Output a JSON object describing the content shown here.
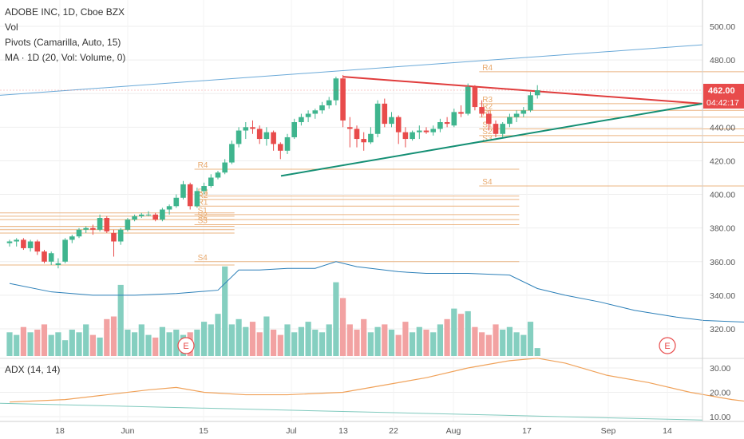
{
  "legend": {
    "title": "ADOBE INC, 1D, Cboe BZX",
    "vol": "Vol",
    "pivots": "Pivots (Camarilla, Auto, 15)",
    "ma": "MA · 1D (20, Vol: Volume, 0)"
  },
  "adx_label": "ADX (14, 14)",
  "colors": {
    "up": "#3fb58e",
    "down": "#e84b4b",
    "up_vol": "#85cfc0",
    "down_vol": "#f2a2a2",
    "pivot": "#e8a86c",
    "channel": "#6aa9d8",
    "trend_red": "#e03c3c",
    "trend_green": "#148f74",
    "ma_line": "#2b7fb8",
    "adx_line": "#f0a25a",
    "price_badge": "#e84b4b",
    "grid": "#eeeeee"
  },
  "chart_data": {
    "type": "candlestick",
    "y_axis": {
      "min": 300,
      "max": 505,
      "ticks": [
        "500.00",
        "480.00",
        "460.00",
        "440.00",
        "420.00",
        "400.00",
        "380.00",
        "360.00",
        "340.00",
        "320.00"
      ]
    },
    "adx_axis": {
      "min": 8,
      "max": 35,
      "ticks": [
        "30.00",
        "20.00",
        "10.00"
      ]
    },
    "x_ticks": [
      "18",
      "Jun",
      "15",
      "Jul",
      "13",
      "22",
      "Aug",
      "17",
      "Sep",
      "14"
    ],
    "current_price": "462.00",
    "countdown": "04:42:17",
    "candles": [
      [
        371,
        373,
        369,
        372
      ],
      [
        372,
        374,
        369,
        373
      ],
      [
        373,
        374,
        367,
        368
      ],
      [
        368,
        373,
        366,
        372
      ],
      [
        372,
        373,
        364,
        366
      ],
      [
        366,
        367,
        359,
        360
      ],
      [
        360,
        366,
        358,
        365
      ],
      [
        358,
        362,
        356,
        359
      ],
      [
        360,
        374,
        359,
        373
      ],
      [
        373,
        376,
        371,
        375
      ],
      [
        375,
        380,
        374,
        379
      ],
      [
        379,
        381,
        377,
        380
      ],
      [
        380,
        382,
        376,
        379
      ],
      [
        379,
        388,
        378,
        386
      ],
      [
        386,
        387,
        377,
        378
      ],
      [
        377,
        379,
        363,
        372
      ],
      [
        372,
        380,
        370,
        379
      ],
      [
        379,
        386,
        378,
        385
      ],
      [
        385,
        388,
        384,
        387
      ],
      [
        387,
        389,
        386,
        388
      ],
      [
        388,
        390,
        387,
        388
      ],
      [
        388,
        389,
        384,
        385
      ],
      [
        385,
        392,
        384,
        391
      ],
      [
        391,
        394,
        388,
        393
      ],
      [
        393,
        400,
        392,
        398
      ],
      [
        398,
        408,
        397,
        406
      ],
      [
        406,
        407,
        391,
        393
      ],
      [
        393,
        404,
        392,
        402
      ],
      [
        402,
        407,
        400,
        405
      ],
      [
        405,
        412,
        404,
        410
      ],
      [
        410,
        414,
        409,
        413
      ],
      [
        413,
        421,
        412,
        419
      ],
      [
        419,
        432,
        418,
        430
      ],
      [
        430,
        440,
        428,
        438
      ],
      [
        438,
        443,
        433,
        440
      ],
      [
        440,
        444,
        436,
        439
      ],
      [
        439,
        441,
        430,
        433
      ],
      [
        433,
        440,
        429,
        437
      ],
      [
        437,
        438,
        426,
        430
      ],
      [
        430,
        431,
        421,
        426
      ],
      [
        426,
        436,
        424,
        434
      ],
      [
        434,
        445,
        433,
        443
      ],
      [
        443,
        448,
        441,
        446
      ],
      [
        446,
        450,
        443,
        448
      ],
      [
        448,
        451,
        445,
        450
      ],
      [
        450,
        455,
        448,
        453
      ],
      [
        453,
        458,
        451,
        456
      ],
      [
        456,
        470,
        453,
        469
      ],
      [
        469,
        471,
        440,
        444
      ],
      [
        440,
        446,
        428,
        439
      ],
      [
        439,
        441,
        428,
        433
      ],
      [
        433,
        437,
        426,
        431
      ],
      [
        431,
        440,
        430,
        436
      ],
      [
        436,
        456,
        434,
        454
      ],
      [
        454,
        457,
        440,
        442
      ],
      [
        442,
        449,
        440,
        446
      ],
      [
        446,
        447,
        430,
        437
      ],
      [
        437,
        440,
        428,
        433
      ],
      [
        433,
        438,
        432,
        437
      ],
      [
        437,
        441,
        433,
        438
      ],
      [
        438,
        440,
        436,
        437
      ],
      [
        437,
        441,
        435,
        439
      ],
      [
        439,
        445,
        437,
        443
      ],
      [
        443,
        446,
        440,
        442
      ],
      [
        441,
        451,
        440,
        449
      ],
      [
        449,
        453,
        446,
        448
      ],
      [
        448,
        466,
        447,
        464
      ],
      [
        464,
        465,
        450,
        452
      ],
      [
        452,
        456,
        446,
        448
      ],
      [
        448,
        450,
        438,
        442
      ],
      [
        442,
        444,
        434,
        436
      ],
      [
        436,
        443,
        434,
        442
      ],
      [
        442,
        448,
        440,
        446
      ],
      [
        446,
        450,
        443,
        448
      ],
      [
        448,
        452,
        446,
        450
      ],
      [
        450,
        461,
        449,
        459
      ],
      [
        459,
        465,
        457,
        462
      ]
    ],
    "volume": [
      9,
      8,
      11,
      9,
      10,
      12,
      8,
      9,
      6,
      10,
      9,
      12,
      8,
      7,
      14,
      15,
      27,
      10,
      9,
      12,
      8,
      7,
      11,
      9,
      10,
      8,
      9,
      10,
      13,
      12,
      16,
      34,
      12,
      14,
      11,
      13,
      9,
      15,
      10,
      8,
      12,
      9,
      11,
      13,
      10,
      9,
      12,
      28,
      22,
      12,
      10,
      14,
      9,
      11,
      12,
      10,
      8,
      13,
      9,
      11,
      10,
      9,
      12,
      14,
      18,
      16,
      17,
      11,
      9,
      8,
      12,
      10,
      11,
      9,
      8,
      13,
      3
    ],
    "ma_volume": [
      [
        0,
        347
      ],
      [
        6,
        342
      ],
      [
        12,
        340
      ],
      [
        18,
        340
      ],
      [
        24,
        341
      ],
      [
        30,
        343
      ],
      [
        33,
        355
      ],
      [
        36,
        355
      ],
      [
        40,
        356
      ],
      [
        44,
        356
      ],
      [
        47,
        360
      ],
      [
        50,
        357
      ],
      [
        56,
        354
      ],
      [
        60,
        353
      ],
      [
        66,
        353
      ],
      [
        72,
        352
      ],
      [
        76,
        344
      ],
      [
        80,
        340
      ],
      [
        85,
        336
      ],
      [
        90,
        331
      ],
      [
        96,
        327
      ],
      [
        100,
        325
      ],
      [
        106,
        324
      ],
      [
        110,
        324
      ],
      [
        116,
        322
      ],
      [
        120,
        318
      ],
      [
        124,
        315
      ],
      [
        128,
        313
      ],
      [
        132,
        312
      ],
      [
        136,
        311
      ]
    ],
    "adx": [
      [
        0,
        16
      ],
      [
        8,
        17
      ],
      [
        14,
        19
      ],
      [
        20,
        21
      ],
      [
        24,
        22
      ],
      [
        28,
        20
      ],
      [
        34,
        19
      ],
      [
        40,
        19
      ],
      [
        48,
        20
      ],
      [
        54,
        23
      ],
      [
        60,
        26
      ],
      [
        66,
        30
      ],
      [
        72,
        33
      ],
      [
        76,
        34
      ],
      [
        80,
        32
      ],
      [
        86,
        27
      ],
      [
        92,
        24
      ],
      [
        98,
        20
      ],
      [
        104,
        17
      ],
      [
        110,
        15
      ],
      [
        116,
        13
      ],
      [
        120,
        12
      ],
      [
        124,
        11
      ],
      [
        128,
        11
      ],
      [
        132,
        12
      ],
      [
        134,
        12
      ]
    ],
    "pivot_periods": [
      {
        "from": 0,
        "to": 31,
        "levels": {
          "R4": 0,
          "R3": 389,
          "R2": 387,
          "R1": 385,
          "S1": 381,
          "S2": 379,
          "S3": 377,
          "S4": 358
        },
        "labels": []
      },
      {
        "from": 28,
        "to": 72,
        "levels": {
          "R4": 415,
          "R3": 399,
          "R2": 397,
          "R1": 393,
          "S1": 388,
          "S2": 385,
          "S3": 382,
          "S4": 360
        },
        "labels": [
          "R4",
          "R3",
          "R2",
          "R1",
          "S1",
          "S2",
          "S3",
          "S4"
        ]
      },
      {
        "from": 69,
        "to": 112,
        "levels": {
          "R4": 473,
          "R3": 454,
          "R2": 450,
          "R1": 446,
          "S1": 439,
          "S2": 435,
          "S3": 431,
          "S4": 405
        },
        "labels": [
          "R4",
          "R3",
          "R2",
          "R1",
          "S1",
          "S2",
          "S3",
          "S4"
        ]
      },
      {
        "from": 110,
        "to": 152,
        "levels": {
          "R4": 473,
          "R3": 452,
          "R2": 448,
          "R1": 445,
          "S1": 439,
          "S2": 434,
          "S3": 431,
          "S4": 415
        },
        "labels": [
          "R4",
          "R3",
          "R2",
          "R1",
          "S1",
          "S2",
          "S3",
          "S4"
        ]
      }
    ],
    "earnings_markers": [
      "E",
      "E"
    ]
  }
}
